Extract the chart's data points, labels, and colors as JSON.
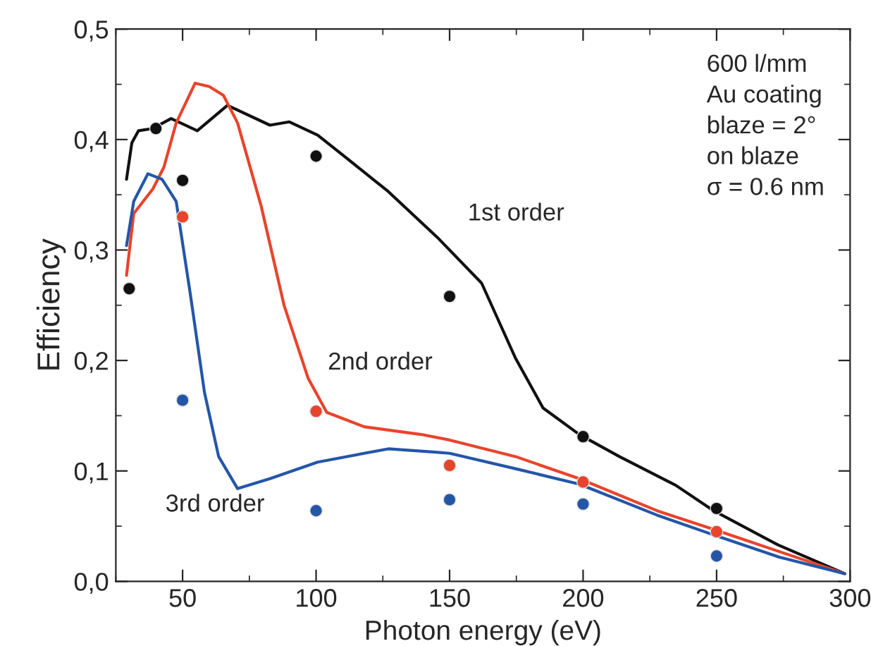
{
  "chart_data": {
    "type": "line",
    "xlabel": "Photon energy (eV)",
    "ylabel": "Efficiency",
    "xlim": [
      25,
      300
    ],
    "ylim": [
      0,
      0.5
    ],
    "xticks": [
      50,
      100,
      150,
      200,
      250,
      300
    ],
    "yticks": [
      {
        "value": 0,
        "label": "0,0"
      },
      {
        "value": 0.1,
        "label": "0,1"
      },
      {
        "value": 0.2,
        "label": "0,2"
      },
      {
        "value": 0.3,
        "label": "0,3"
      },
      {
        "value": 0.4,
        "label": "0,4"
      },
      {
        "value": 0.5,
        "label": "0,5"
      }
    ],
    "grid": false,
    "legend": false,
    "line_style": "solid",
    "series": [
      {
        "color": "#111111",
        "x": [
          29,
          31,
          33.5,
          38.8,
          45.7,
          55.5,
          66.8,
          82.7,
          90,
          100.6,
          111,
          127,
          146,
          162,
          174.7,
          185,
          198.6,
          213.6,
          234.7,
          248.9,
          273,
          298
        ],
        "values": [
          0.364,
          0.397,
          0.408,
          0.41,
          0.419,
          0.408,
          0.431,
          0.413,
          0.416,
          0.404,
          0.384,
          0.353,
          0.31,
          0.27,
          0.202,
          0.157,
          0.133,
          0.113,
          0.087,
          0.064,
          0.033,
          0.007
        ]
      },
      {
        "color": "#e8442c",
        "x": [
          29,
          31.7,
          38.8,
          43,
          47.6,
          54.7,
          60,
          65.3,
          70.6,
          79.4,
          88,
          97,
          104,
          118,
          139.4,
          150,
          174.7,
          198.6,
          227.7,
          249,
          273.5,
          298
        ],
        "values": [
          0.277,
          0.333,
          0.355,
          0.375,
          0.415,
          0.451,
          0.448,
          0.44,
          0.415,
          0.34,
          0.25,
          0.184,
          0.153,
          0.14,
          0.133,
          0.128,
          0.113,
          0.093,
          0.064,
          0.047,
          0.027,
          0.007
        ]
      },
      {
        "color": "#2456a8",
        "x": [
          29,
          31.7,
          37,
          42.3,
          47.6,
          52.9,
          58.2,
          63.5,
          70.6,
          82.7,
          100.6,
          127,
          144.7,
          150,
          174.7,
          198.6,
          227.7,
          249,
          273.5,
          298
        ],
        "values": [
          0.304,
          0.344,
          0.369,
          0.364,
          0.344,
          0.26,
          0.171,
          0.113,
          0.084,
          0.093,
          0.108,
          0.12,
          0.117,
          0.116,
          0.102,
          0.088,
          0.06,
          0.042,
          0.022,
          0.007
        ]
      },
      {
        "type": "scatter",
        "marker": "circle",
        "color": "#111111",
        "x": [
          30,
          40,
          50,
          100,
          150,
          200,
          250
        ],
        "values": [
          0.265,
          0.41,
          0.363,
          0.385,
          0.258,
          0.131,
          0.066
        ]
      },
      {
        "type": "scatter",
        "marker": "circle",
        "color": "#e8442c",
        "x": [
          50,
          100,
          150,
          200,
          250
        ],
        "values": [
          0.33,
          0.154,
          0.105,
          0.09,
          0.045
        ]
      },
      {
        "type": "scatter",
        "marker": "circle",
        "color": "#2456a8",
        "x": [
          50,
          100,
          150,
          200,
          250
        ],
        "values": [
          0.164,
          0.064,
          0.074,
          0.07,
          0.023
        ]
      }
    ],
    "annotations": [
      "1st order",
      "2nd order",
      "3rd order",
      "600 l/mm\nAu coating\nblaze = 2°\non blaze\nσ = 0.6 nm"
    ]
  }
}
